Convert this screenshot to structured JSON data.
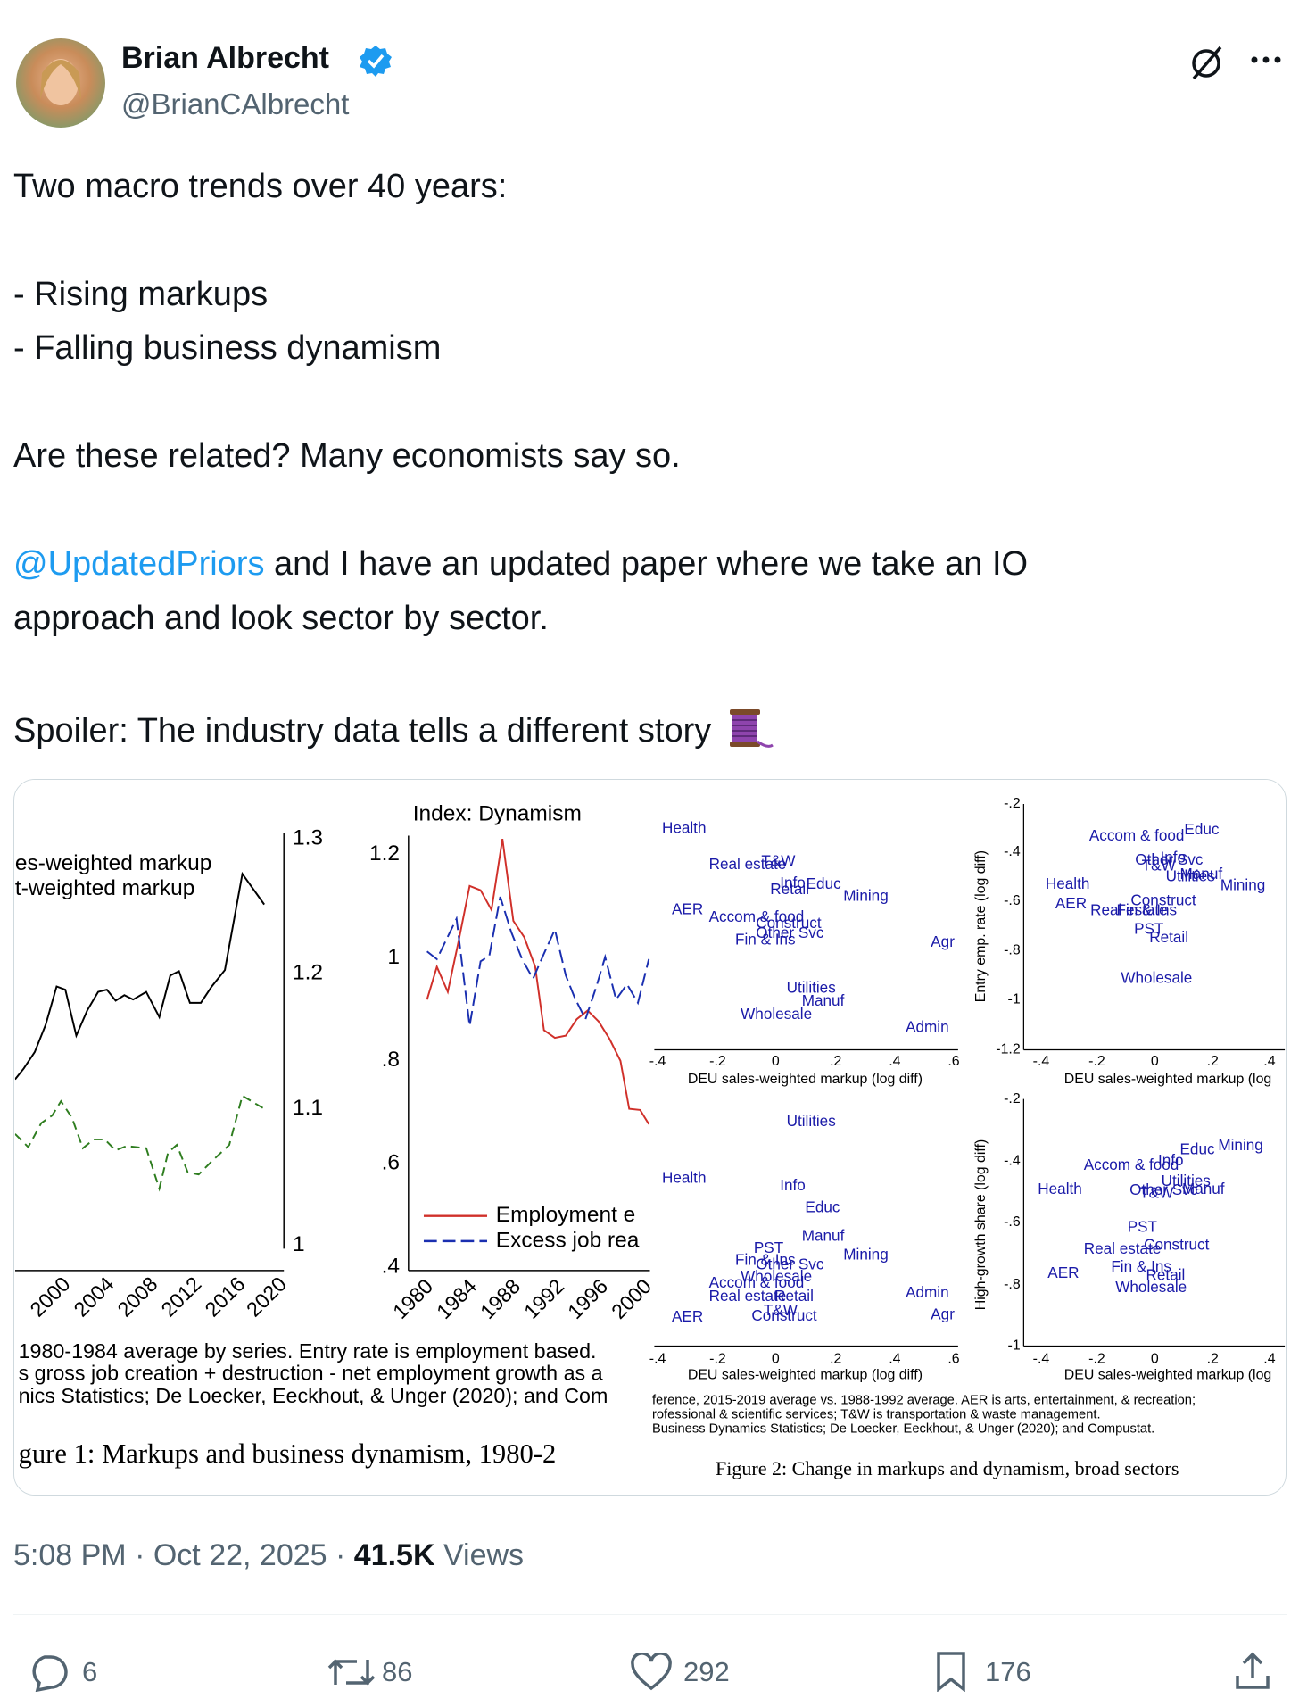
{
  "author": {
    "name": "Brian Albrecht",
    "handle": "@BrianCAlbrecht"
  },
  "text": {
    "line_1": "Two macro trends over 40 years:",
    "line_2": "- Rising markups",
    "line_3": "- Falling business dynamism",
    "line_4": "Are these related? Many economists say so.",
    "mention": "@UpdatedPriors",
    "line_5": " and I have an updated paper where we take an IO",
    "line_6": "approach and look sector by sector.",
    "line_7": "Spoiler: The industry data tells a different story"
  },
  "figure_1": {
    "legend": [
      "es-weighted markup",
      "t-weighted markup"
    ],
    "right_ticks": [
      "1.3",
      "1.2",
      "1.1",
      "1"
    ],
    "x_ticks_left": [
      "2000",
      "2004",
      "2008",
      "2012",
      "2016",
      "2020"
    ],
    "panel_title": "Index: Dynamism",
    "y_ticks": [
      "1.2",
      "1",
      ".8",
      ".6",
      ".4"
    ],
    "x_ticks_mid": [
      "1980",
      "1984",
      "1988",
      "1992",
      "1996",
      "2000"
    ],
    "series_legend": [
      "Employment e",
      "Excess job rea"
    ],
    "notes": [
      "1980-1984 average by series. Entry rate is employment based.",
      "s gross job creation + destruction - net employment growth as a",
      "nics Statistics; De Loecker, Eeckhout, & Unger (2020); and Com"
    ],
    "caption": "gure 1: Markups and business dynamism, 1980-2"
  },
  "figure_2": {
    "panels": [
      {
        "labels": [
          "Health",
          "Real estate",
          "T&W",
          "Info",
          "Retail",
          "Educ",
          "Mining",
          "AER",
          "Accom & food",
          "Construct",
          "Fin & Ins",
          "Other Svc",
          "Agr",
          "Utilities",
          "Manuf",
          "Wholesale",
          "Admin"
        ],
        "x_ticks": [
          "-.4",
          "-.2",
          "0",
          ".2",
          ".4",
          ".6"
        ],
        "x_label": "DEU sales-weighted markup (log diff)"
      },
      {
        "labels": [
          "Accom & food",
          "Educ",
          "Other Svc",
          "Info",
          "T&W",
          "Utilities",
          "Manuf",
          "Mining",
          "Health",
          "AER",
          "Real estate",
          "Fin & Ins",
          "Construct",
          "PST",
          "Retail",
          "Wholesale"
        ],
        "x_ticks": [
          "-.4",
          "-.2",
          "0",
          ".2",
          ".4"
        ],
        "x_label": "DEU sales-weighted markup (log",
        "y_ticks": [
          "-.2",
          "-.4",
          "-.6",
          "-.8",
          "-1",
          "-1.2"
        ],
        "y_label": "Entry emp. rate (log diff)"
      },
      {
        "labels": [
          "Utilities",
          "Health",
          "Info",
          "Educ",
          "Manuf",
          "PST",
          "Fin & Ins",
          "Other Svc",
          "Mining",
          "Wholesale",
          "Accom & food",
          "Real estate",
          "Retail",
          "T&W",
          "Construct",
          "AER",
          "Admin",
          "Agr"
        ],
        "x_ticks": [
          "-.4",
          "-.2",
          "0",
          ".2",
          ".4",
          ".6"
        ],
        "x_label": "DEU sales-weighted markup (log diff)"
      },
      {
        "labels": [
          "Accom & food",
          "Info",
          "Educ",
          "Mining",
          "Health",
          "Utilities",
          "Other Svc",
          "T&W",
          "Manuf",
          "PST",
          "Real estate",
          "Construct",
          "AER",
          "Fin & Ins",
          "Retail",
          "Wholesale"
        ],
        "x_ticks": [
          "-.4",
          "-.2",
          "0",
          ".2",
          ".4"
        ],
        "x_label": "DEU sales-weighted markup (log",
        "y_ticks": [
          "-.2",
          "-.4",
          "-.6",
          "-.8",
          "-1"
        ],
        "y_label": "High-growth share (log diff)"
      }
    ],
    "notes": [
      "ference, 2015-2019 average vs. 1988-1992 average. AER is arts, entertainment, & recreation;",
      "rofessional & scientific services; T&W is transportation & waste management.",
      "Business Dynamics Statistics; De Loecker, Eeckhout, & Unger (2020); and Compustat."
    ],
    "caption": "Figure 2: Change in markups and dynamism, broad sectors"
  },
  "footer": {
    "time": "5:08 PM",
    "separator": "·",
    "date": "Oct 22, 2025",
    "views_count": "41.5K",
    "views_label": "Views"
  },
  "actions": {
    "replies": 6,
    "reposts": 86,
    "likes": 292,
    "bookmarks": 176
  }
}
